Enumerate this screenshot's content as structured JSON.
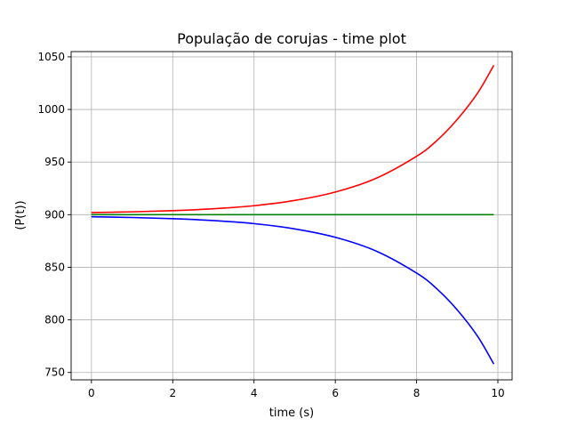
{
  "chart_data": {
    "type": "line",
    "title": "População de corujas - time plot",
    "xlabel": "time (s)",
    "ylabel": "(P(t))",
    "xlim": [
      -0.5,
      10.35
    ],
    "ylim": [
      743,
      1055
    ],
    "xticks": [
      0,
      2,
      4,
      6,
      8,
      10
    ],
    "yticks": [
      750,
      800,
      850,
      900,
      950,
      1000,
      1050
    ],
    "grid": true,
    "series": [
      {
        "color": "#ff0000",
        "x": [
          0,
          1,
          2,
          3,
          4,
          5,
          6,
          7,
          8,
          8.5,
          9,
          9.5,
          9.9
        ],
        "y": [
          902,
          902.7,
          903.8,
          905.6,
          908.5,
          913.5,
          921.5,
          934.5,
          955.5,
          970.5,
          990.5,
          1015.5,
          1042
        ]
      },
      {
        "color": "#008000",
        "x": [
          0,
          9.9
        ],
        "y": [
          900,
          900
        ]
      },
      {
        "color": "#0000ff",
        "x": [
          0,
          1,
          2,
          3,
          4,
          5,
          6,
          7,
          8,
          8.5,
          9,
          9.5,
          9.9
        ],
        "y": [
          898,
          897.3,
          896.2,
          894.4,
          891.5,
          886.5,
          878.5,
          865.5,
          844.5,
          829.5,
          809.5,
          784.5,
          758
        ]
      }
    ]
  }
}
